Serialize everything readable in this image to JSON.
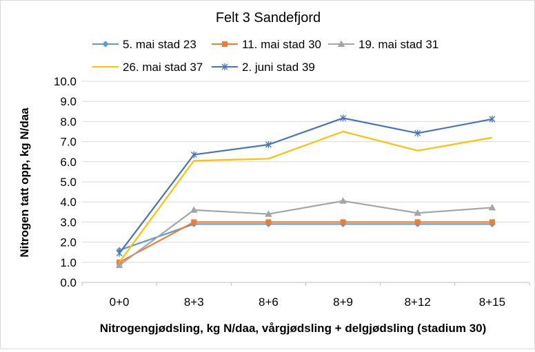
{
  "chart_data": {
    "type": "line",
    "title": "Felt 3 Sandefjord",
    "xlabel": "Nitrogengjødsling, kg N/daa, vårgjødsling + delgjødsling (stadium 30)",
    "ylabel": "Nitrogen tatt opp, kg N/daa",
    "categories": [
      "0+0",
      "8+3",
      "8+6",
      "8+9",
      "8+12",
      "8+15"
    ],
    "ylim": [
      0,
      10
    ],
    "yticks": [
      "0.0",
      "1.0",
      "2.0",
      "3.0",
      "4.0",
      "5.0",
      "6.0",
      "7.0",
      "8.0",
      "9.0",
      "10.0"
    ],
    "grid": true,
    "legend_position": "top",
    "series": [
      {
        "name": "5. mai stad 23",
        "color": "#5B9BD5",
        "marker": "diamond",
        "values": [
          1.6,
          2.9,
          2.9,
          2.9,
          2.9,
          2.9
        ]
      },
      {
        "name": "11. mai stad 30",
        "color": "#ED7D31",
        "marker": "square",
        "values": [
          1.0,
          3.0,
          3.0,
          3.0,
          3.0,
          3.0
        ]
      },
      {
        "name": "19. mai stad 31",
        "color": "#A5A5A5",
        "marker": "triangle",
        "values": [
          0.85,
          3.6,
          3.4,
          4.05,
          3.45,
          3.72
        ]
      },
      {
        "name": "26. mai stad 37",
        "color": "#FFC000",
        "marker": "none",
        "values": [
          1.0,
          6.05,
          6.15,
          7.5,
          6.55,
          7.2
        ]
      },
      {
        "name": "2. juni stad 39",
        "color": "#4472C4",
        "marker": "star",
        "values": [
          1.45,
          6.35,
          6.85,
          8.17,
          7.42,
          8.12
        ]
      }
    ]
  }
}
